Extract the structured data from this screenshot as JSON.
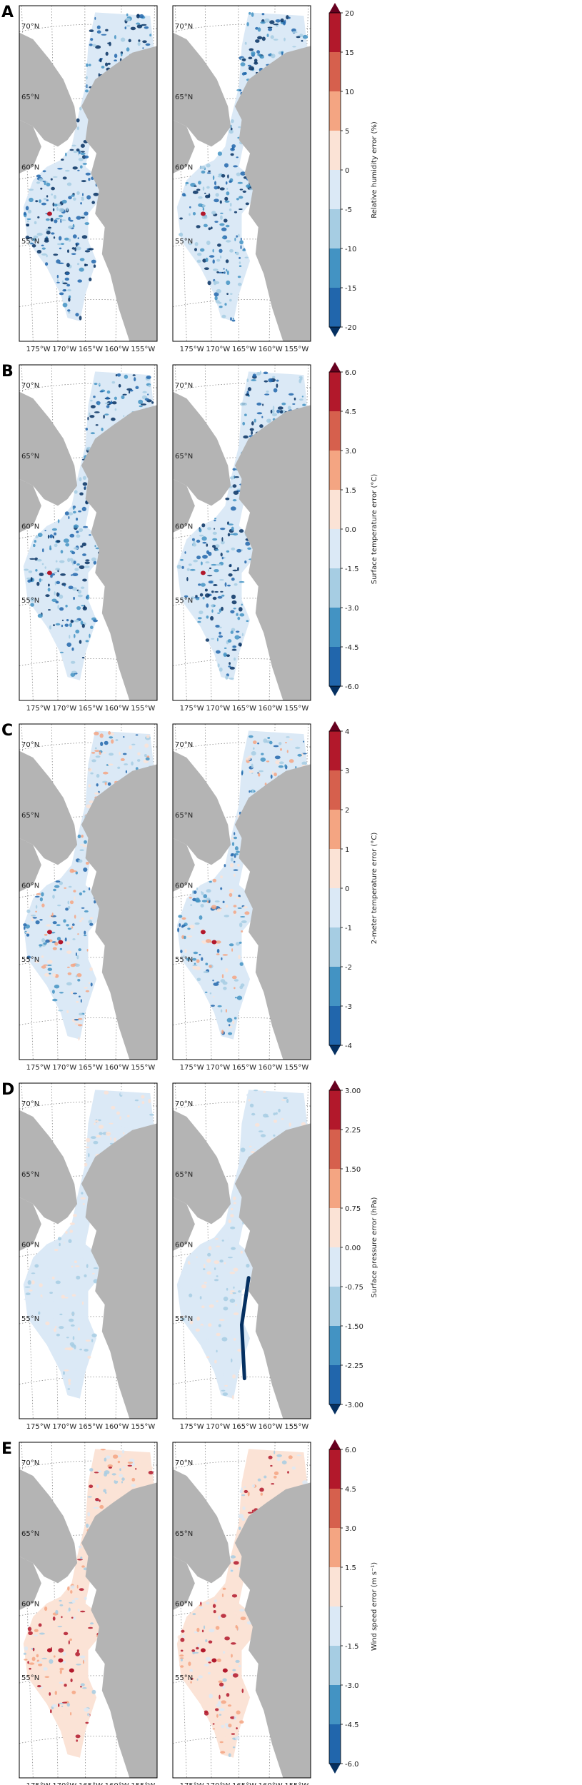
{
  "figure": {
    "panels": [
      {
        "letter": "A",
        "colorbar_label": "Relative humidity error (%)",
        "ticks": [
          "20",
          "15",
          "10",
          "5",
          "0",
          "-5",
          "-10",
          "-15",
          "-20"
        ],
        "pattern": "blue_strong"
      },
      {
        "letter": "B",
        "colorbar_label": "Surface temperature error (°C)",
        "ticks": [
          "6.0",
          "4.5",
          "3.0",
          "1.5",
          "0.0",
          "-1.5",
          "-3.0",
          "-4.5",
          "-6.0"
        ],
        "pattern": "blue_strong"
      },
      {
        "letter": "C",
        "colorbar_label": "2-meter temperature error (°C)",
        "ticks": [
          "4",
          "3",
          "2",
          "1",
          "0",
          "-1",
          "-2",
          "-3",
          "-4"
        ],
        "pattern": "mixed"
      },
      {
        "letter": "D",
        "colorbar_label": "Surface pressure error (hPa)",
        "ticks": [
          "3.00",
          "2.25",
          "1.50",
          "0.75",
          "0.00",
          "-0.75",
          "-1.50",
          "-2.25",
          "-3.00"
        ],
        "pattern": "light"
      },
      {
        "letter": "E",
        "colorbar_label": "Wind speed error (m s⁻¹)",
        "ticks": [
          "6.0",
          "4.5",
          "3.0",
          "1.5",
          "",
          "-1.5",
          "-3.0",
          "-4.5",
          "-6.0"
        ],
        "pattern": "warm_light"
      }
    ],
    "lat_labels": [
      "70°N",
      "65°N",
      "60°N",
      "55°N"
    ],
    "lon_labels": [
      "175°W",
      "170°W",
      "165°W",
      "160°W",
      "155°W"
    ],
    "colors": {
      "land": "#b4b4b4",
      "bins": [
        "#67001f",
        "#b2182b",
        "#d6604d",
        "#f4a582",
        "#fbe3d6",
        "#dbe9f6",
        "#a6cde3",
        "#4393c3",
        "#2166ac",
        "#053061"
      ]
    }
  }
}
